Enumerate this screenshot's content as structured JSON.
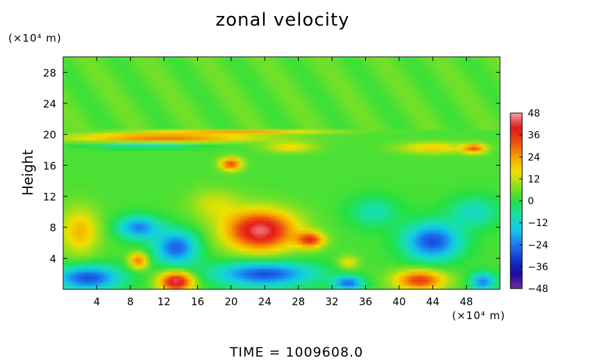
{
  "chart_data": {
    "type": "heatmap",
    "title": "zonal velocity",
    "xlabel": "(×10⁴ m)",
    "ylabel": "Height",
    "y_unit": "(×10⁴ m)",
    "xlim": [
      0,
      52
    ],
    "ylim": [
      0,
      30
    ],
    "x_ticks": [
      4,
      8,
      12,
      16,
      20,
      24,
      28,
      32,
      36,
      40,
      44,
      48
    ],
    "y_ticks": [
      4,
      8,
      12,
      16,
      20,
      24,
      28
    ],
    "colorbar": {
      "range": [
        -48,
        48
      ],
      "ticks": [
        48,
        36,
        24,
        12,
        0,
        -12,
        -24,
        -36,
        -48
      ],
      "tick_labels": [
        "48",
        "36",
        "24",
        "12",
        "0",
        "−12",
        "−24",
        "−36",
        "−48"
      ]
    },
    "background_value": 3,
    "features": [
      {
        "x": 12,
        "y": 19.6,
        "rx": 11,
        "ry": 0.6,
        "value": 26
      },
      {
        "x": 22,
        "y": 20.4,
        "rx": 10,
        "ry": 0.3,
        "value": 18
      },
      {
        "x": 10,
        "y": 18.6,
        "rx": 7,
        "ry": 0.4,
        "value": -14
      },
      {
        "x": 20,
        "y": 16.2,
        "rx": 1.3,
        "ry": 0.8,
        "value": 30
      },
      {
        "x": 44,
        "y": 18.3,
        "rx": 4,
        "ry": 0.7,
        "value": 16
      },
      {
        "x": 49,
        "y": 18.2,
        "rx": 1.4,
        "ry": 0.6,
        "value": 26
      },
      {
        "x": 27,
        "y": 18.4,
        "rx": 3,
        "ry": 0.7,
        "value": 14
      },
      {
        "x": 23.5,
        "y": 7.6,
        "rx": 4.2,
        "ry": 2.6,
        "value": 42
      },
      {
        "x": 29.5,
        "y": 6.4,
        "rx": 1.6,
        "ry": 1.0,
        "value": 30
      },
      {
        "x": 2,
        "y": 7.5,
        "rx": 2.3,
        "ry": 3.0,
        "value": 18
      },
      {
        "x": 9,
        "y": 8.0,
        "rx": 2.5,
        "ry": 1.5,
        "value": -26
      },
      {
        "x": 13.5,
        "y": 5.4,
        "rx": 2.6,
        "ry": 2.2,
        "value": -30
      },
      {
        "x": 44,
        "y": 6.2,
        "rx": 3.4,
        "ry": 2.4,
        "value": -32
      },
      {
        "x": 9,
        "y": 3.7,
        "rx": 1.1,
        "ry": 1.0,
        "value": 26
      },
      {
        "x": 13.5,
        "y": 1.0,
        "rx": 2.0,
        "ry": 1.3,
        "value": 42
      },
      {
        "x": 3,
        "y": 1.5,
        "rx": 4.0,
        "ry": 1.6,
        "value": -32
      },
      {
        "x": 24,
        "y": 2.0,
        "rx": 6.0,
        "ry": 1.6,
        "value": -32
      },
      {
        "x": 34,
        "y": 0.8,
        "rx": 1.8,
        "ry": 0.9,
        "value": -28
      },
      {
        "x": 42.5,
        "y": 1.2,
        "rx": 3.0,
        "ry": 1.3,
        "value": 32
      },
      {
        "x": 50,
        "y": 1.0,
        "rx": 1.5,
        "ry": 1.2,
        "value": -26
      },
      {
        "x": 49,
        "y": 10.0,
        "rx": 3.0,
        "ry": 2.0,
        "value": -14
      },
      {
        "x": 18,
        "y": 11.0,
        "rx": 3.0,
        "ry": 2.0,
        "value": 10
      },
      {
        "x": 37,
        "y": 10.0,
        "rx": 3.0,
        "ry": 2.0,
        "value": -12
      },
      {
        "x": 34,
        "y": 3.5,
        "rx": 1.2,
        "ry": 0.8,
        "value": 14
      }
    ]
  },
  "footer": {
    "time_text": "TIME  =  1009608.0"
  }
}
